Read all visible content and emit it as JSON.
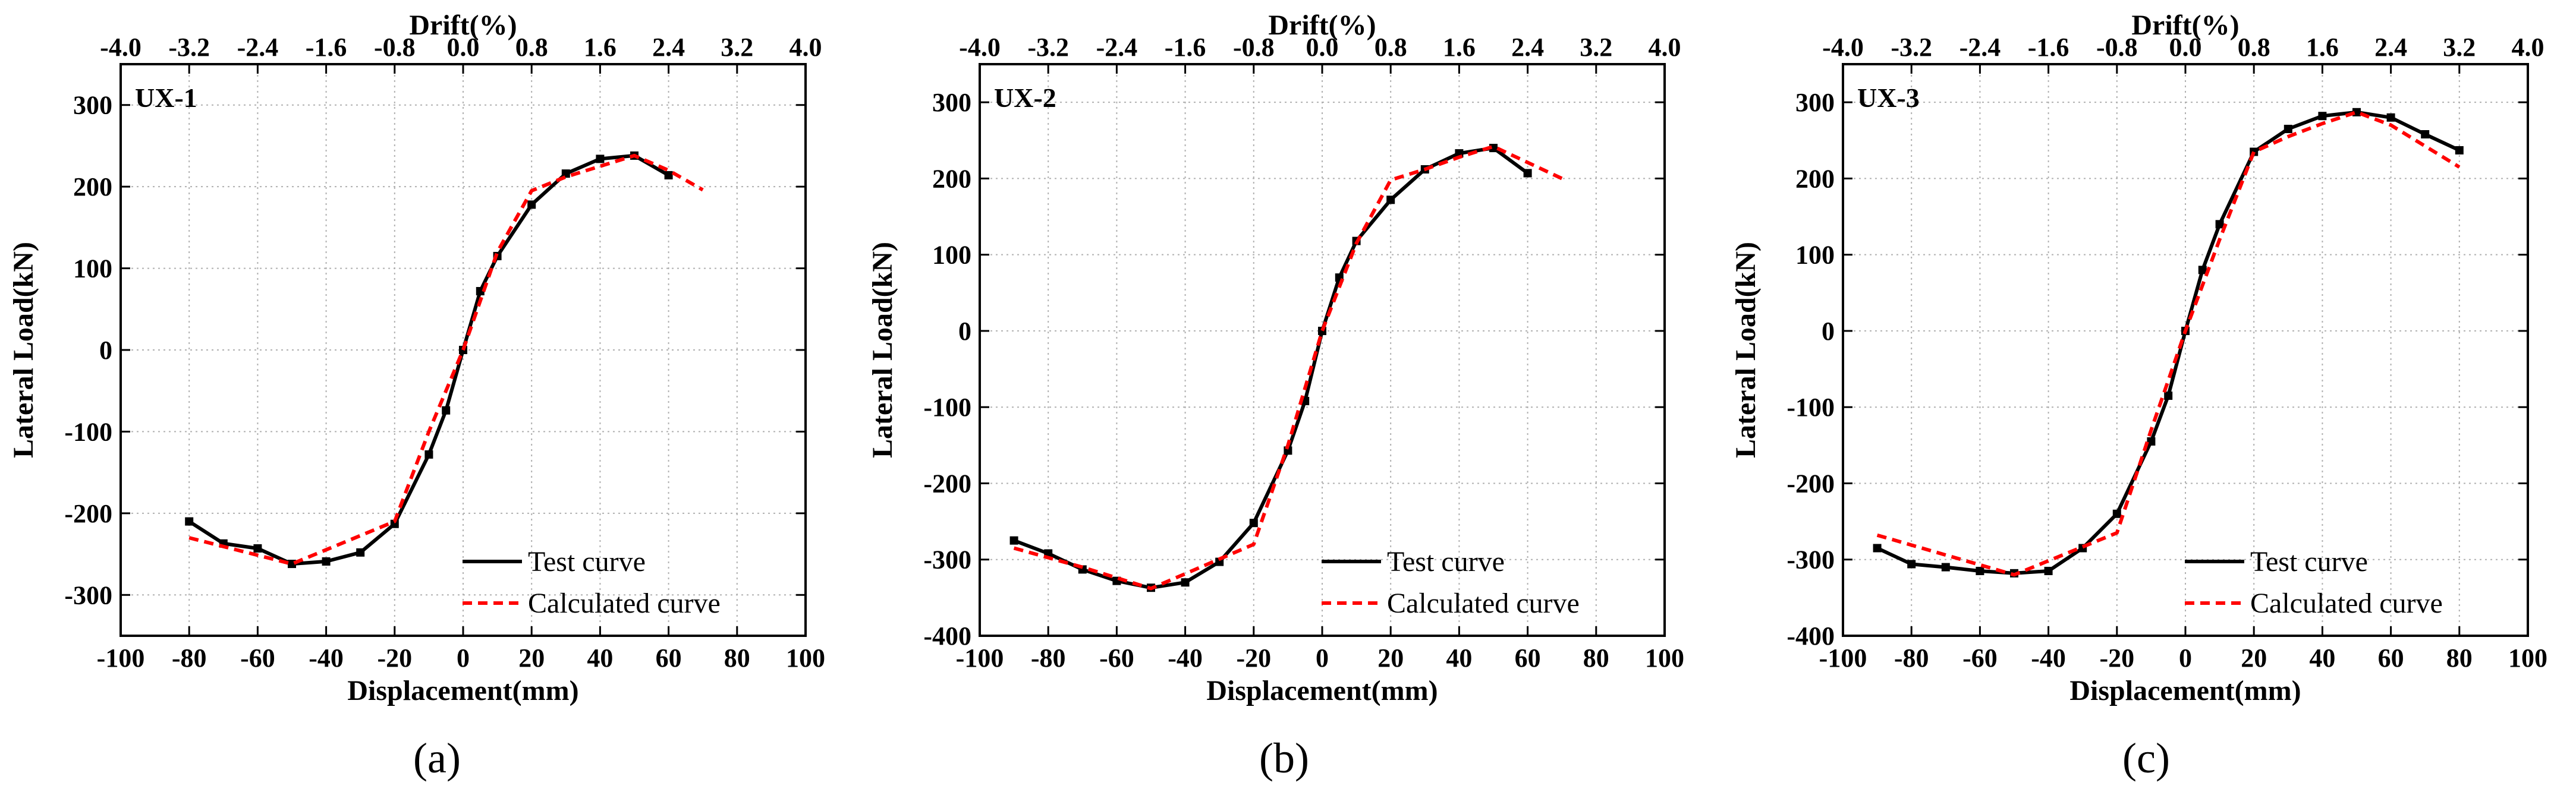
{
  "figure": {
    "captions": [
      "(a)",
      "(b)",
      "(c)"
    ],
    "caption_letters": [
      "a",
      "b",
      "c"
    ]
  },
  "chart_data": [
    {
      "type": "line",
      "label": "UX-1",
      "xlabel": "Displacement(mm)",
      "ylabel": "Lateral Load(kN)",
      "top_xlabel": "Drift(%)",
      "xlim": [
        -100,
        100
      ],
      "ylim": [
        -350,
        350
      ],
      "xticks": [
        -100,
        -80,
        -60,
        -40,
        -20,
        0,
        20,
        40,
        60,
        80,
        100
      ],
      "yticks": [
        -300,
        -200,
        -100,
        0,
        100,
        200,
        300
      ],
      "top_ticks": [
        "-4.0",
        "-3.2",
        "-2.4",
        "-1.6",
        "-0.8",
        "0.0",
        "0.8",
        "1.6",
        "2.4",
        "3.2",
        "4.0"
      ],
      "grid": true,
      "legend_position": "bottom-right",
      "series": [
        {
          "name": "Test curve",
          "color": "#000000",
          "style": "solid",
          "markers": true,
          "x": [
            -80,
            -70,
            -60,
            -50,
            -40,
            -30,
            -20,
            -10,
            -5,
            0,
            5,
            10,
            20,
            30,
            40,
            50,
            60
          ],
          "y": [
            -210,
            -237,
            -243,
            -262,
            -259,
            -248,
            -213,
            -128,
            -74,
            0,
            72,
            115,
            178,
            216,
            234,
            238,
            214
          ]
        },
        {
          "name": "Calculated curve",
          "color": "#ff0000",
          "style": "dashed",
          "markers": false,
          "x": [
            -80,
            -50,
            -20,
            -10,
            0,
            10,
            20,
            30,
            40,
            50,
            60,
            70
          ],
          "y": [
            -230,
            -262,
            -210,
            -100,
            0,
            120,
            195,
            212,
            225,
            238,
            220,
            196
          ]
        }
      ]
    },
    {
      "type": "line",
      "label": "UX-2",
      "xlabel": "Displacement(mm)",
      "ylabel": "Lateral Load(kN)",
      "top_xlabel": "Drift(%)",
      "xlim": [
        -100,
        100
      ],
      "ylim": [
        -400,
        350
      ],
      "xticks": [
        -100,
        -80,
        -60,
        -40,
        -20,
        0,
        20,
        40,
        60,
        80,
        100
      ],
      "yticks": [
        -400,
        -300,
        -200,
        -100,
        0,
        100,
        200,
        300
      ],
      "top_ticks": [
        "-4.0",
        "-3.2",
        "-2.4",
        "-1.6",
        "-0.8",
        "0.0",
        "0.8",
        "1.6",
        "2.4",
        "3.2",
        "4.0"
      ],
      "grid": true,
      "legend_position": "bottom-right",
      "series": [
        {
          "name": "Test curve",
          "color": "#000000",
          "style": "solid",
          "markers": true,
          "x": [
            -90,
            -80,
            -70,
            -60,
            -50,
            -40,
            -30,
            -20,
            -10,
            -5,
            0,
            5,
            10,
            20,
            30,
            40,
            50,
            60
          ],
          "y": [
            -275,
            -292,
            -313,
            -328,
            -337,
            -330,
            -303,
            -252,
            -157,
            -92,
            0,
            70,
            118,
            172,
            212,
            233,
            240,
            207
          ]
        },
        {
          "name": "Calculated curve",
          "color": "#ff0000",
          "style": "dashed",
          "markers": false,
          "x": [
            -90,
            -70,
            -50,
            -20,
            -10,
            0,
            10,
            20,
            30,
            40,
            50,
            70
          ],
          "y": [
            -285,
            -310,
            -338,
            -280,
            -150,
            0,
            115,
            198,
            212,
            228,
            242,
            200
          ]
        }
      ]
    },
    {
      "type": "line",
      "label": "UX-3",
      "xlabel": "Displacement(mm)",
      "ylabel": "Lateral Load(kN)",
      "top_xlabel": "Drift(%)",
      "xlim": [
        -100,
        100
      ],
      "ylim": [
        -400,
        350
      ],
      "xticks": [
        -100,
        -80,
        -60,
        -40,
        -20,
        0,
        20,
        40,
        60,
        80,
        100
      ],
      "yticks": [
        -400,
        -300,
        -200,
        -100,
        0,
        100,
        200,
        300
      ],
      "top_ticks": [
        "-4.0",
        "-3.2",
        "-2.4",
        "-1.6",
        "-0.8",
        "0.0",
        "0.8",
        "1.6",
        "2.4",
        "3.2",
        "4.0"
      ],
      "grid": true,
      "legend_position": "bottom-right",
      "series": [
        {
          "name": "Test curve",
          "color": "#000000",
          "style": "solid",
          "markers": true,
          "x": [
            -90,
            -80,
            -70,
            -60,
            -50,
            -40,
            -30,
            -20,
            -10,
            -5,
            0,
            5,
            10,
            20,
            30,
            40,
            50,
            60,
            70,
            80
          ],
          "y": [
            -285,
            -306,
            -310,
            -315,
            -318,
            -315,
            -285,
            -240,
            -145,
            -85,
            0,
            80,
            140,
            235,
            265,
            282,
            287,
            280,
            258,
            237
          ]
        },
        {
          "name": "Calculated curve",
          "color": "#ff0000",
          "style": "dashed",
          "markers": false,
          "x": [
            -90,
            -50,
            -20,
            -10,
            0,
            10,
            20,
            30,
            40,
            50,
            60,
            80
          ],
          "y": [
            -268,
            -320,
            -265,
            -130,
            0,
            120,
            235,
            255,
            272,
            287,
            270,
            215
          ]
        }
      ]
    }
  ]
}
